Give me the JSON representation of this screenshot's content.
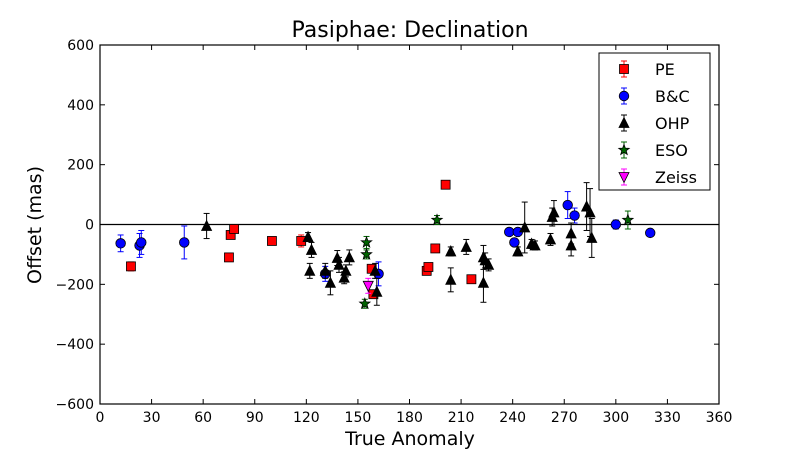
{
  "chart_data": {
    "type": "scatter",
    "title": "Pasiphae: Declination",
    "xlabel": "True Anomaly",
    "ylabel": "Offset (mas)",
    "xlim": [
      0,
      360
    ],
    "ylim": [
      -600,
      600
    ],
    "x_ticks": [
      0,
      30,
      60,
      90,
      120,
      150,
      180,
      210,
      240,
      270,
      300,
      330,
      360
    ],
    "y_ticks": [
      -600,
      -400,
      -200,
      0,
      200,
      400,
      600
    ],
    "x_tick_labels": [
      "0",
      "30",
      "60",
      "90",
      "120",
      "150",
      "180",
      "210",
      "240",
      "270",
      "300",
      "330",
      "360"
    ],
    "y_tick_labels": [
      "−600",
      "−400",
      "−200",
      "0",
      "200",
      "400",
      "600"
    ],
    "reference_line_y": 0,
    "legend_position": "top-right",
    "series": [
      {
        "name": "PE",
        "marker": "square",
        "color": "#ff0000",
        "points": [
          {
            "x": 18,
            "y": -140,
            "err": 15
          },
          {
            "x": 75,
            "y": -110,
            "err": 8
          },
          {
            "x": 76,
            "y": -35,
            "err": 10
          },
          {
            "x": 78,
            "y": -15,
            "err": 10
          },
          {
            "x": 100,
            "y": -55,
            "err": 8
          },
          {
            "x": 117,
            "y": -55,
            "err": 20
          },
          {
            "x": 158,
            "y": -148,
            "err": 10
          },
          {
            "x": 159,
            "y": -233,
            "err": 10
          },
          {
            "x": 190,
            "y": -155,
            "err": 10
          },
          {
            "x": 191,
            "y": -142,
            "err": 10
          },
          {
            "x": 195,
            "y": -80,
            "err": 10
          },
          {
            "x": 201,
            "y": 133,
            "err": 8
          },
          {
            "x": 216,
            "y": -183,
            "err": 10
          }
        ]
      },
      {
        "name": "B&C",
        "marker": "circle",
        "color": "#0000ff",
        "points": [
          {
            "x": 12,
            "y": -63,
            "err": 28
          },
          {
            "x": 23,
            "y": -70,
            "err": 40
          },
          {
            "x": 24,
            "y": -60,
            "err": 40
          },
          {
            "x": 49,
            "y": -60,
            "err": 55
          },
          {
            "x": 131,
            "y": -165,
            "err": 25
          },
          {
            "x": 162,
            "y": -165,
            "err": 40
          },
          {
            "x": 238,
            "y": -25,
            "err": 10
          },
          {
            "x": 241,
            "y": -60,
            "err": 12
          },
          {
            "x": 243,
            "y": -25,
            "err": 10
          },
          {
            "x": 272,
            "y": 65,
            "err": 45
          },
          {
            "x": 276,
            "y": 30,
            "err": 25
          },
          {
            "x": 300,
            "y": 0,
            "err": 15
          },
          {
            "x": 320,
            "y": -28,
            "err": 8
          }
        ]
      },
      {
        "name": "OHP",
        "marker": "triangle",
        "color": "#000000",
        "points": [
          {
            "x": 62,
            "y": -5,
            "err": 42
          },
          {
            "x": 121,
            "y": -42,
            "err": 15
          },
          {
            "x": 122,
            "y": -155,
            "err": 25
          },
          {
            "x": 123,
            "y": -85,
            "err": 25
          },
          {
            "x": 131,
            "y": -155,
            "err": 25
          },
          {
            "x": 134,
            "y": -195,
            "err": 40
          },
          {
            "x": 138,
            "y": -112,
            "err": 25
          },
          {
            "x": 139,
            "y": -135,
            "err": 25
          },
          {
            "x": 142,
            "y": -178,
            "err": 20
          },
          {
            "x": 143,
            "y": -155,
            "err": 20
          },
          {
            "x": 145,
            "y": -110,
            "err": 25
          },
          {
            "x": 161,
            "y": -225,
            "err": 45
          },
          {
            "x": 160,
            "y": -155,
            "err": 25
          },
          {
            "x": 204,
            "y": -90,
            "err": 15
          },
          {
            "x": 204,
            "y": -185,
            "err": 40
          },
          {
            "x": 213,
            "y": -75,
            "err": 25
          },
          {
            "x": 223,
            "y": -110,
            "err": 40
          },
          {
            "x": 223,
            "y": -195,
            "err": 65
          },
          {
            "x": 224,
            "y": -120,
            "err": 25
          },
          {
            "x": 226,
            "y": -135,
            "err": 20
          },
          {
            "x": 243,
            "y": -90,
            "err": 15
          },
          {
            "x": 247,
            "y": -10,
            "err": 85
          },
          {
            "x": 251,
            "y": -65,
            "err": 15
          },
          {
            "x": 253,
            "y": -70,
            "err": 15
          },
          {
            "x": 262,
            "y": -50,
            "err": 20
          },
          {
            "x": 263,
            "y": 25,
            "err": 30
          },
          {
            "x": 264,
            "y": 40,
            "err": 40
          },
          {
            "x": 274,
            "y": -30,
            "err": 35
          },
          {
            "x": 274,
            "y": -70,
            "err": 35
          },
          {
            "x": 283,
            "y": 60,
            "err": 80
          },
          {
            "x": 285,
            "y": 40,
            "err": 80
          },
          {
            "x": 286,
            "y": -45,
            "err": 65
          }
        ]
      },
      {
        "name": "ESO",
        "marker": "star",
        "color": "#006400",
        "points": [
          {
            "x": 154,
            "y": -265,
            "err": 15
          },
          {
            "x": 155,
            "y": -60,
            "err": 20
          },
          {
            "x": 155,
            "y": -100,
            "err": 15
          },
          {
            "x": 196,
            "y": 15,
            "err": 15
          },
          {
            "x": 307,
            "y": 15,
            "err": 30
          }
        ]
      },
      {
        "name": "Zeiss",
        "marker": "triangle-down",
        "color": "#ff00ff",
        "points": [
          {
            "x": 156,
            "y": -205,
            "err": 25
          }
        ]
      }
    ]
  }
}
